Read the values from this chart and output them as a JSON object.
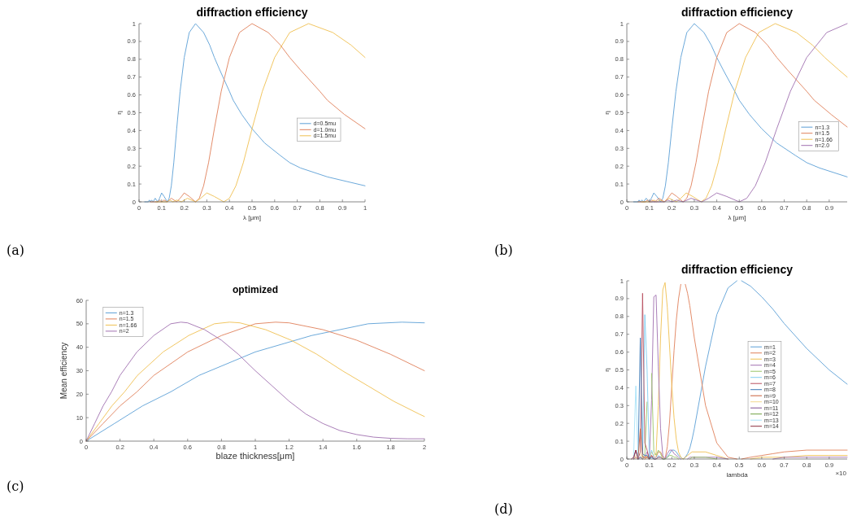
{
  "chart_data": [
    {
      "type": "line",
      "title": "diffraction efficiency",
      "xlabel": "λ [μm]",
      "ylabel": "η",
      "xlim": [
        0,
        1
      ],
      "ylim": [
        0,
        1
      ],
      "xticks": [
        0,
        0.1,
        0.2,
        0.3,
        0.4,
        0.5,
        0.6,
        0.7,
        0.8,
        0.9,
        1
      ],
      "yticks": [
        0,
        0.1,
        0.2,
        0.3,
        0.4,
        0.5,
        0.6,
        0.7,
        0.8,
        0.9,
        1
      ],
      "legend": "right",
      "annotations": [
        "(a)"
      ],
      "series": [
        {
          "name": "d=0.5mu",
          "color": "#5b9fd6",
          "x": [
            0.025,
            0.0333,
            0.0417,
            0.0455,
            0.05,
            0.0556,
            0.0625,
            0.0714,
            0.0833,
            0.0909,
            0.1,
            0.1111,
            0.125,
            0.1333,
            0.1429,
            0.1538,
            0.1667,
            0.1818,
            0.2,
            0.2222,
            0.25,
            0.2857,
            0.3125,
            0.3333,
            0.3571,
            0.4,
            0.4167,
            0.4545,
            0.5,
            0.5556,
            0.625,
            0.6667,
            0.7143,
            0.8333,
            1
          ],
          "values": [
            0,
            0,
            0,
            0.01,
            0,
            0.01,
            0,
            0.02,
            0,
            0.02,
            0.05,
            0.03,
            0,
            0.02,
            0.09,
            0.22,
            0.41,
            0.62,
            0.81,
            0.95,
            1,
            0.95,
            0.88,
            0.81,
            0.74,
            0.62,
            0.57,
            0.49,
            0.41,
            0.33,
            0.26,
            0.22,
            0.19,
            0.14,
            0.09
          ]
        },
        {
          "name": "d=1.0mu",
          "color": "#e0805a",
          "x": [
            0.05,
            0.0667,
            0.0833,
            0.0909,
            0.1,
            0.1111,
            0.125,
            0.1429,
            0.1667,
            0.1818,
            0.2,
            0.2222,
            0.25,
            0.2667,
            0.2857,
            0.3077,
            0.3333,
            0.3636,
            0.4,
            0.4444,
            0.5,
            0.5714,
            0.625,
            0.6667,
            0.7143,
            0.8,
            0.8333,
            0.909,
            1
          ],
          "values": [
            0,
            0,
            0,
            0.01,
            0,
            0.01,
            0,
            0.02,
            0,
            0.02,
            0.05,
            0.03,
            0,
            0.02,
            0.09,
            0.22,
            0.41,
            0.62,
            0.81,
            0.95,
            1,
            0.95,
            0.88,
            0.81,
            0.74,
            0.62,
            0.57,
            0.49,
            0.41
          ]
        },
        {
          "name": "d=1.5mu",
          "color": "#efc050",
          "x": [
            0.075,
            0.1,
            0.125,
            0.1364,
            0.15,
            0.1667,
            0.1875,
            0.2143,
            0.25,
            0.2727,
            0.3,
            0.3333,
            0.375,
            0.4,
            0.4286,
            0.4615,
            0.5,
            0.5455,
            0.6,
            0.6667,
            0.75,
            0.8571,
            0.9375,
            1
          ],
          "values": [
            0,
            0,
            0,
            0.01,
            0,
            0.01,
            0,
            0.02,
            0,
            0.02,
            0.05,
            0.03,
            0,
            0.02,
            0.09,
            0.22,
            0.41,
            0.62,
            0.81,
            0.95,
            1,
            0.95,
            0.88,
            0.81
          ]
        }
      ]
    },
    {
      "type": "line",
      "title": "diffraction efficiency",
      "xlabel": "λ [μm]",
      "ylabel": "η",
      "xlim": [
        0,
        0.98
      ],
      "ylim": [
        0,
        1
      ],
      "xticks": [
        0,
        0.1,
        0.2,
        0.3,
        0.4,
        0.5,
        0.6,
        0.7,
        0.8,
        0.9
      ],
      "yticks": [
        0,
        0.1,
        0.2,
        0.3,
        0.4,
        0.5,
        0.6,
        0.7,
        0.8,
        0.9,
        1
      ],
      "legend": "right",
      "annotations": [
        "(b)"
      ],
      "series": [
        {
          "name": "n=1.3",
          "color": "#5b9fd6",
          "x": [
            0.03,
            0.04,
            0.05,
            0.0545,
            0.06,
            0.0667,
            0.075,
            0.0857,
            0.1,
            0.1091,
            0.12,
            0.1333,
            0.15,
            0.16,
            0.1714,
            0.1846,
            0.2,
            0.2182,
            0.24,
            0.2667,
            0.3,
            0.3429,
            0.375,
            0.4,
            0.4286,
            0.48,
            0.5,
            0.5454,
            0.6,
            0.6667,
            0.75,
            0.8,
            0.8571,
            0.98
          ],
          "values": [
            0,
            0,
            0,
            0.01,
            0,
            0.01,
            0,
            0.02,
            0,
            0.02,
            0.05,
            0.03,
            0,
            0.02,
            0.09,
            0.22,
            0.41,
            0.62,
            0.81,
            0.95,
            1,
            0.95,
            0.88,
            0.81,
            0.74,
            0.62,
            0.57,
            0.49,
            0.41,
            0.33,
            0.26,
            0.22,
            0.19,
            0.14
          ]
        },
        {
          "name": "n=1.5",
          "color": "#e0805a",
          "x": [
            0.05,
            0.0667,
            0.0833,
            0.0909,
            0.1,
            0.1111,
            0.125,
            0.1429,
            0.1667,
            0.1818,
            0.2,
            0.2222,
            0.25,
            0.2667,
            0.2857,
            0.3077,
            0.3333,
            0.3636,
            0.4,
            0.4444,
            0.5,
            0.5714,
            0.625,
            0.6667,
            0.7143,
            0.8,
            0.8333,
            0.909,
            0.98
          ],
          "values": [
            0,
            0,
            0,
            0.01,
            0,
            0.01,
            0,
            0.02,
            0,
            0.02,
            0.05,
            0.03,
            0,
            0.02,
            0.09,
            0.22,
            0.41,
            0.62,
            0.81,
            0.95,
            1,
            0.95,
            0.88,
            0.81,
            0.74,
            0.62,
            0.57,
            0.49,
            0.42
          ]
        },
        {
          "name": "n=1.66",
          "color": "#efc050",
          "x": [
            0.066,
            0.088,
            0.11,
            0.12,
            0.132,
            0.1467,
            0.165,
            0.1886,
            0.22,
            0.24,
            0.264,
            0.2933,
            0.33,
            0.352,
            0.3771,
            0.4062,
            0.44,
            0.48,
            0.528,
            0.5867,
            0.66,
            0.7543,
            0.825,
            0.88,
            0.9429,
            0.98
          ],
          "values": [
            0,
            0,
            0,
            0.01,
            0,
            0.01,
            0,
            0.02,
            0,
            0.02,
            0.05,
            0.03,
            0,
            0.02,
            0.09,
            0.22,
            0.41,
            0.62,
            0.81,
            0.95,
            1,
            0.95,
            0.88,
            0.81,
            0.74,
            0.7
          ]
        },
        {
          "name": "n=2.0",
          "color": "#a070b0",
          "x": [
            0.1,
            0.1333,
            0.1667,
            0.1818,
            0.2,
            0.2222,
            0.25,
            0.2857,
            0.3333,
            0.3636,
            0.4,
            0.4444,
            0.5,
            0.5333,
            0.5714,
            0.6154,
            0.6667,
            0.7273,
            0.8,
            0.8889,
            0.98
          ],
          "values": [
            0,
            0,
            0,
            0.01,
            0,
            0.01,
            0,
            0.02,
            0,
            0.02,
            0.05,
            0.03,
            0,
            0.02,
            0.09,
            0.22,
            0.41,
            0.62,
            0.81,
            0.95,
            1
          ]
        }
      ]
    },
    {
      "type": "line",
      "title": "optimized",
      "xlabel": "blaze thickness[μm]",
      "ylabel": "Mean efficiency",
      "xlim": [
        0,
        2
      ],
      "ylim": [
        0,
        60
      ],
      "xticks": [
        0,
        0.2,
        0.4,
        0.6,
        0.8,
        1,
        1.2,
        1.4,
        1.6,
        1.8,
        2
      ],
      "yticks": [
        0,
        10,
        20,
        30,
        40,
        50,
        60
      ],
      "legend": "top left",
      "annotations": [
        "(c)"
      ],
      "series": [
        {
          "name": "n=1.3",
          "color": "#5b9fd6",
          "x": [
            0,
            0.167,
            0.333,
            0.5,
            0.667,
            1,
            1.333,
            1.667,
            1.867,
            2
          ],
          "values": [
            0,
            7.5,
            15,
            21,
            28,
            38,
            45,
            50,
            50.7,
            50.4
          ]
        },
        {
          "name": "n=1.5",
          "color": "#e0805a",
          "x": [
            0,
            0.1,
            0.2,
            0.3,
            0.4,
            0.6,
            0.8,
            1,
            1.12,
            1.2,
            1.4,
            1.6,
            1.8,
            2
          ],
          "values": [
            0,
            7.5,
            15,
            21,
            28,
            38,
            45,
            50,
            50.7,
            50.4,
            47.5,
            43,
            37,
            30
          ]
        },
        {
          "name": "n=1.66",
          "color": "#efc050",
          "x": [
            0,
            0.076,
            0.152,
            0.227,
            0.303,
            0.455,
            0.606,
            0.758,
            0.848,
            0.909,
            1.061,
            1.212,
            1.364,
            1.515,
            1.667,
            1.818,
            1.97,
            2
          ],
          "values": [
            0,
            7.5,
            15,
            21,
            28,
            38,
            45,
            50,
            50.7,
            50.4,
            47.5,
            43,
            37,
            30,
            23.5,
            17,
            11.5,
            10.5
          ]
        },
        {
          "name": "n=2",
          "color": "#a070b0",
          "x": [
            0,
            0.05,
            0.1,
            0.15,
            0.2,
            0.3,
            0.4,
            0.5,
            0.56,
            0.6,
            0.7,
            0.8,
            0.9,
            1,
            1.1,
            1.2,
            1.3,
            1.4,
            1.5,
            1.6,
            1.7,
            1.8,
            1.9,
            2
          ],
          "values": [
            0,
            7.5,
            15,
            21,
            28,
            38,
            45,
            50,
            50.7,
            50.4,
            47.5,
            43,
            37,
            30,
            23.5,
            17,
            11.5,
            7.5,
            4.5,
            2.8,
            1.7,
            1.2,
            1,
            1
          ]
        }
      ]
    },
    {
      "type": "line",
      "title": "diffraction efficiency",
      "xlabel": "lambda",
      "ylabel": "η",
      "xlim": [
        0,
        0.98
      ],
      "ylim": [
        0,
        1
      ],
      "xticks": [
        0,
        0.1,
        0.2,
        0.3,
        0.4,
        0.5,
        0.6,
        0.7,
        0.8,
        0.9
      ],
      "yticks": [
        0,
        0.1,
        0.2,
        0.3,
        0.4,
        0.5,
        0.6,
        0.7,
        0.8,
        0.9,
        1
      ],
      "legend": "right",
      "annotations": [
        "(d)",
        "×10"
      ],
      "x": [
        0.02,
        0.03,
        0.04,
        0.05,
        0.06,
        0.07,
        0.08,
        0.09,
        0.1,
        0.11,
        0.12,
        0.13,
        0.14,
        0.15,
        0.16,
        0.17,
        0.18,
        0.19,
        0.2,
        0.21,
        0.22,
        0.23,
        0.24,
        0.25,
        0.26,
        0.27,
        0.28,
        0.29,
        0.3,
        0.35,
        0.4,
        0.45,
        0.49,
        0.5,
        0.51,
        0.55,
        0.6,
        0.65,
        0.7,
        0.8,
        0.9,
        0.98
      ],
      "series": [
        {
          "name": "m=1",
          "color": "#5b9fd6",
          "values": [
            null,
            null,
            null,
            null,
            null,
            null,
            null,
            null,
            0,
            0.01,
            0,
            0,
            0.01,
            0.01,
            0,
            0,
            0.01,
            0.03,
            0.05,
            0.05,
            0.04,
            0.02,
            0.01,
            0,
            0.01,
            0.03,
            0.06,
            0.11,
            0.17,
            0.52,
            0.81,
            0.96,
            1,
            null,
            1,
            0.97,
            0.91,
            0.84,
            0.76,
            0.62,
            0.5,
            0.42
          ]
        },
        {
          "name": "m=2",
          "color": "#e0805a",
          "values": [
            null,
            null,
            null,
            null,
            null,
            null,
            0,
            0.01,
            0,
            0.02,
            0.01,
            0.01,
            0.04,
            0.04,
            0.01,
            0,
            0.07,
            0.21,
            0.41,
            0.61,
            0.78,
            0.9,
            0.98,
            null,
            0.98,
            0.93,
            0.86,
            0.77,
            0.68,
            0.3,
            0.09,
            0.01,
            0,
            null,
            0,
            0.01,
            0.02,
            0.03,
            0.04,
            0.05,
            0.05,
            0.05
          ]
        },
        {
          "name": "m=3",
          "color": "#efc050",
          "values": [
            null,
            null,
            null,
            null,
            null,
            null,
            0,
            0.02,
            0,
            0.04,
            0.02,
            0.03,
            0.3,
            0.68,
            0.95,
            0.99,
            0.85,
            0.63,
            0.41,
            0.23,
            0.11,
            0.04,
            0.01,
            0,
            0.01,
            0.02,
            0.03,
            0.04,
            0.04,
            0.04,
            0.02,
            0,
            null,
            null,
            null,
            0,
            0.01,
            0.01,
            0.01,
            0.02,
            0.02,
            0.02
          ]
        },
        {
          "name": "m=4",
          "color": "#a070b0",
          "values": [
            null,
            null,
            null,
            null,
            null,
            0,
            0.01,
            0.04,
            0,
            0.33,
            0.91,
            0.92,
            0.52,
            0.17,
            0.02,
            0,
            0.03,
            0.05,
            0.05,
            0.03,
            0.02,
            0.01,
            0,
            null,
            null,
            0,
            0.01,
            0.01,
            0.01,
            0.01,
            0.01,
            0,
            null,
            null,
            null,
            null,
            null,
            0,
            0.01,
            0.01,
            0.01,
            0.01
          ]
        },
        {
          "name": "m=5",
          "color": "#98c468",
          "values": [
            null,
            null,
            null,
            0,
            0.01,
            0,
            0.03,
            0.32,
            null,
            0.48,
            0.04,
            0.02,
            0.05,
            0.03,
            0,
            0,
            0.01,
            0.02,
            0.02,
            0.01,
            0.01,
            0,
            null,
            null,
            null,
            null,
            0,
            0.01,
            0.01,
            0.01,
            0,
            null,
            null,
            null,
            null,
            null,
            null,
            null,
            null,
            null,
            null,
            null
          ]
        },
        {
          "name": "m=6",
          "color": "#80cdf0",
          "values": [
            null,
            null,
            null,
            0,
            0.01,
            0.01,
            0.81,
            0.5,
            0,
            0.05,
            0.01,
            0,
            0.02,
            0.01,
            0,
            null,
            null,
            null,
            null,
            null,
            null,
            null,
            null,
            null,
            null,
            null,
            null,
            null,
            null,
            null,
            null,
            null,
            null,
            null,
            null,
            null,
            null,
            null,
            null,
            null,
            null,
            null
          ]
        },
        {
          "name": "m=7",
          "color": "#b85060",
          "values": [
            null,
            null,
            null,
            0,
            0.04,
            0.93,
            0.09,
            0.05,
            0,
            0.02,
            0,
            0,
            0.01,
            0.01,
            0,
            null,
            null,
            null,
            null,
            null,
            null,
            null,
            null,
            null,
            null,
            null,
            null,
            null,
            null,
            null,
            null,
            null,
            null,
            null,
            null,
            null,
            null,
            null,
            null,
            null,
            null,
            null
          ]
        },
        {
          "name": "m=8",
          "color": "#3a78b5",
          "values": [
            null,
            null,
            null,
            0,
            0.68,
            0.03,
            0.02,
            0.02,
            0,
            0.01,
            0,
            null,
            null,
            null,
            null,
            null,
            null,
            null,
            null,
            null,
            null,
            null,
            null,
            null,
            null,
            null,
            null,
            null,
            null,
            null,
            null,
            null,
            null,
            null,
            null,
            null,
            null,
            null,
            null,
            null,
            null,
            null
          ]
        },
        {
          "name": "m=9",
          "color": "#c9603a",
          "values": [
            null,
            0,
            0.01,
            0,
            0.17,
            0.01,
            0.01,
            0.01,
            0,
            null,
            null,
            null,
            null,
            null,
            null,
            null,
            null,
            null,
            null,
            null,
            null,
            null,
            null,
            null,
            null,
            null,
            null,
            null,
            null,
            null,
            null,
            null,
            null,
            null,
            null,
            null,
            null,
            null,
            null,
            null,
            null,
            null
          ]
        },
        {
          "name": "m=10",
          "color": "#f3d98e",
          "values": [
            null,
            0,
            0.02,
            null,
            0.03,
            0,
            null,
            null,
            null,
            null,
            null,
            null,
            null,
            null,
            null,
            null,
            null,
            null,
            null,
            null,
            null,
            null,
            null,
            null,
            null,
            null,
            null,
            null,
            null,
            null,
            null,
            null,
            null,
            null,
            null,
            null,
            null,
            null,
            null,
            null,
            null,
            null
          ]
        },
        {
          "name": "m=11",
          "color": "#7d4f93",
          "values": [
            null,
            0,
            0.05,
            0,
            0.01,
            0,
            null,
            null,
            null,
            null,
            null,
            null,
            null,
            null,
            null,
            null,
            null,
            null,
            null,
            null,
            null,
            null,
            null,
            null,
            null,
            null,
            null,
            null,
            null,
            null,
            null,
            null,
            null,
            null,
            null,
            null,
            null,
            null,
            null,
            null,
            null,
            null
          ]
        },
        {
          "name": "m=12",
          "color": "#6fa040",
          "values": [
            null,
            null,
            null,
            null,
            null,
            null,
            null,
            null,
            null,
            null,
            null,
            null,
            null,
            null,
            null,
            null,
            null,
            null,
            null,
            null,
            null,
            null,
            null,
            null,
            null,
            null,
            null,
            null,
            null,
            null,
            null,
            null,
            null,
            null,
            null,
            null,
            null,
            null,
            null,
            null,
            null,
            null
          ]
        },
        {
          "name": "m=13",
          "color": "#a6e2f8",
          "values": [
            null,
            0.01,
            0.41,
            0,
            null,
            null,
            null,
            null,
            null,
            null,
            null,
            null,
            null,
            null,
            null,
            null,
            null,
            null,
            null,
            null,
            null,
            null,
            null,
            null,
            null,
            null,
            null,
            null,
            null,
            null,
            null,
            null,
            null,
            null,
            null,
            null,
            null,
            null,
            null,
            null,
            null,
            null
          ]
        },
        {
          "name": "m=14",
          "color": "#8c2c3c",
          "values": [
            0,
            0.01,
            0.05,
            0,
            null,
            null,
            null,
            null,
            null,
            null,
            null,
            null,
            null,
            null,
            null,
            null,
            null,
            null,
            null,
            null,
            null,
            null,
            null,
            null,
            null,
            null,
            null,
            null,
            null,
            null,
            null,
            null,
            null,
            null,
            null,
            null,
            null,
            null,
            null,
            null,
            null,
            null
          ]
        }
      ]
    }
  ]
}
